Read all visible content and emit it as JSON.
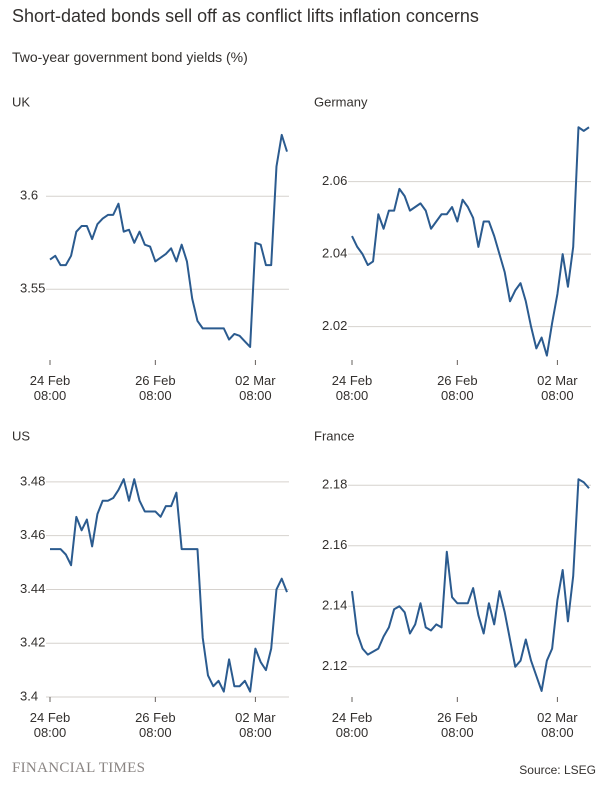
{
  "title": "Short-dated bonds sell off as conflict lifts inflation concerns",
  "subtitle": "Two-year government bond yields (%)",
  "source": "Source: LSEG",
  "logo": "FINANCIAL TIMES",
  "chart_data": [
    {
      "type": "line",
      "title": "UK",
      "color": "#2b5b8f",
      "categories": [
        "24 Feb\n08:00",
        null,
        null,
        null,
        null,
        null,
        null,
        null,
        null,
        null,
        null,
        null,
        null,
        null,
        null,
        null,
        null,
        null,
        null,
        null,
        "26 Feb\n08:00",
        null,
        null,
        null,
        null,
        null,
        null,
        null,
        null,
        null,
        null,
        null,
        null,
        null,
        null,
        null,
        null,
        null,
        null,
        "02 Mar\n08:00",
        null,
        null,
        null,
        null,
        null,
        null
      ],
      "values": [
        3.566,
        3.568,
        3.563,
        3.563,
        3.568,
        3.581,
        3.584,
        3.584,
        3.577,
        3.585,
        3.588,
        3.59,
        3.59,
        3.596,
        3.581,
        3.582,
        3.575,
        3.581,
        3.574,
        3.573,
        3.565,
        3.567,
        3.569,
        3.572,
        3.565,
        3.574,
        3.565,
        3.545,
        3.533,
        3.529,
        3.529,
        3.529,
        3.529,
        3.529,
        3.523,
        3.526,
        3.525,
        3.522,
        3.519,
        3.575,
        3.574,
        3.563,
        3.563,
        3.616,
        3.633,
        3.624
      ],
      "ylim": [
        3.512,
        3.641
      ],
      "yticks": [
        3.55,
        3.6
      ],
      "grid": true
    },
    {
      "type": "line",
      "title": "Germany",
      "color": "#2b5b8f",
      "categories": [
        "24 Feb\n08:00",
        null,
        null,
        null,
        null,
        null,
        null,
        null,
        null,
        null,
        null,
        null,
        null,
        null,
        null,
        null,
        null,
        null,
        null,
        null,
        "26 Feb\n08:00",
        null,
        null,
        null,
        null,
        null,
        null,
        null,
        null,
        null,
        null,
        null,
        null,
        null,
        null,
        null,
        null,
        null,
        null,
        "02 Mar\n08:00",
        null,
        null,
        null,
        null,
        null,
        null
      ],
      "values": [
        2.045,
        2.042,
        2.04,
        2.037,
        2.038,
        2.051,
        2.047,
        2.052,
        2.052,
        2.058,
        2.056,
        2.052,
        2.053,
        2.054,
        2.052,
        2.047,
        2.049,
        2.051,
        2.051,
        2.053,
        2.049,
        2.055,
        2.053,
        2.05,
        2.042,
        2.049,
        2.049,
        2.045,
        2.04,
        2.035,
        2.027,
        2.03,
        2.032,
        2.027,
        2.02,
        2.014,
        2.017,
        2.012,
        2.021,
        2.029,
        2.04,
        2.031,
        2.042,
        2.075,
        2.074,
        2.075
      ],
      "ylim": [
        2.0108,
        2.077
      ],
      "yticks": [
        2.02,
        2.04,
        2.06
      ],
      "grid": true
    },
    {
      "type": "line",
      "title": "US",
      "color": "#2b5b8f",
      "categories": [
        "24 Feb\n08:00",
        null,
        null,
        null,
        null,
        null,
        null,
        null,
        null,
        null,
        null,
        null,
        null,
        null,
        null,
        null,
        null,
        null,
        null,
        null,
        "26 Feb\n08:00",
        null,
        null,
        null,
        null,
        null,
        null,
        null,
        null,
        null,
        null,
        null,
        null,
        null,
        null,
        null,
        null,
        null,
        null,
        "02 Mar\n08:00",
        null,
        null,
        null,
        null,
        null,
        null
      ],
      "values": [
        3.455,
        3.455,
        3.455,
        3.453,
        3.449,
        3.467,
        3.462,
        3.466,
        3.456,
        3.468,
        3.473,
        3.473,
        3.474,
        3.477,
        3.481,
        3.473,
        3.481,
        3.473,
        3.469,
        3.469,
        3.469,
        3.467,
        3.471,
        3.471,
        3.476,
        3.455,
        3.455,
        3.455,
        3.455,
        3.422,
        3.408,
        3.404,
        3.406,
        3.402,
        3.414,
        3.404,
        3.404,
        3.406,
        3.402,
        3.418,
        3.413,
        3.41,
        3.418,
        3.44,
        3.444,
        3.439
      ],
      "ylim": [
        3.4,
        3.49
      ],
      "yticks": [
        3.4,
        3.42,
        3.44,
        3.46,
        3.48
      ],
      "grid": true
    },
    {
      "type": "line",
      "title": "France",
      "color": "#2b5b8f",
      "categories": [
        "24 Feb\n08:00",
        null,
        null,
        null,
        null,
        null,
        null,
        null,
        null,
        null,
        null,
        null,
        null,
        null,
        null,
        null,
        null,
        null,
        null,
        null,
        "26 Feb\n08:00",
        null,
        null,
        null,
        null,
        null,
        null,
        null,
        null,
        null,
        null,
        null,
        null,
        null,
        null,
        null,
        null,
        null,
        null,
        "02 Mar\n08:00",
        null,
        null,
        null,
        null,
        null,
        null
      ],
      "values": [
        2.145,
        2.131,
        2.126,
        2.124,
        2.125,
        2.126,
        2.13,
        2.133,
        2.139,
        2.14,
        2.138,
        2.131,
        2.134,
        2.141,
        2.133,
        2.132,
        2.134,
        2.133,
        2.158,
        2.143,
        2.141,
        2.141,
        2.141,
        2.146,
        2.137,
        2.131,
        2.141,
        2.134,
        2.145,
        2.138,
        2.129,
        2.12,
        2.122,
        2.129,
        2.122,
        2.117,
        2.112,
        2.122,
        2.126,
        2.142,
        2.152,
        2.135,
        2.15,
        2.182,
        2.181,
        2.179
      ],
      "ylim": [
        2.11,
        2.19
      ],
      "yticks": [
        2.12,
        2.14,
        2.16,
        2.18
      ],
      "grid": true
    }
  ]
}
